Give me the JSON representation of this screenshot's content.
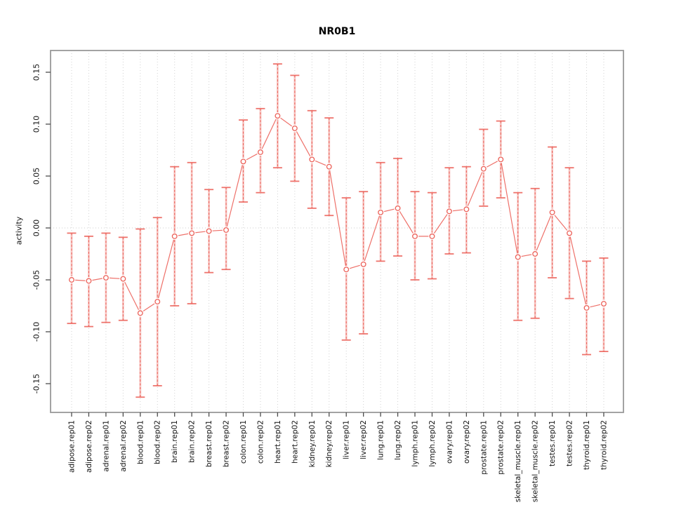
{
  "chart_data": {
    "type": "line",
    "title": "NR0B1",
    "ylabel": "activity",
    "xlabel": "",
    "grid": "vertical-dotted-per-category, dotted-zero-line",
    "legend": "none",
    "marker": "open-circle",
    "error_bars": true,
    "ylim": [
      -0.177,
      0.171
    ],
    "yticks": [
      {
        "value": 0.15,
        "label": "0.15"
      },
      {
        "value": 0.1,
        "label": "0.10"
      },
      {
        "value": 0.05,
        "label": "0.05"
      },
      {
        "value": 0.0,
        "label": "0.00"
      },
      {
        "value": -0.05,
        "label": "-0.05"
      },
      {
        "value": -0.1,
        "label": "-0.10"
      },
      {
        "value": -0.15,
        "label": "-0.15"
      }
    ],
    "categories": [
      "adipose.rep01",
      "adipose.rep02",
      "adrenal.rep01",
      "adrenal.rep02",
      "blood.rep01",
      "blood.rep02",
      "brain.rep01",
      "brain.rep02",
      "breast.rep01",
      "breast.rep02",
      "colon.rep01",
      "colon.rep02",
      "heart.rep01",
      "heart.rep02",
      "kidney.rep01",
      "kidney.rep02",
      "liver.rep01",
      "liver.rep02",
      "lung.rep01",
      "lung.rep02",
      "lymph.rep01",
      "lymph.rep02",
      "ovary.rep01",
      "ovary.rep02",
      "prostate.rep01",
      "prostate.rep02",
      "skeletal_muscle.rep01",
      "skeletal_muscle.rep02",
      "testes.rep01",
      "testes.rep02",
      "thyroid.rep01",
      "thyroid.rep02"
    ],
    "series": [
      {
        "name": "activity",
        "values": [
          -0.05,
          -0.051,
          -0.048,
          -0.049,
          -0.082,
          -0.071,
          -0.008,
          -0.005,
          -0.003,
          -0.002,
          0.064,
          0.073,
          0.108,
          0.096,
          0.066,
          0.059,
          -0.04,
          -0.035,
          0.015,
          0.019,
          -0.008,
          -0.008,
          0.016,
          0.018,
          0.057,
          0.066,
          -0.028,
          -0.025,
          0.015,
          -0.005,
          -0.077,
          -0.073
        ],
        "lower": [
          -0.092,
          -0.095,
          -0.091,
          -0.089,
          -0.163,
          -0.152,
          -0.075,
          -0.073,
          -0.043,
          -0.04,
          0.025,
          0.034,
          0.058,
          0.045,
          0.019,
          0.012,
          -0.108,
          -0.102,
          -0.032,
          -0.027,
          -0.05,
          -0.049,
          -0.025,
          -0.024,
          0.021,
          0.029,
          -0.089,
          -0.087,
          -0.048,
          -0.068,
          -0.122,
          -0.119
        ],
        "upper": [
          -0.005,
          -0.008,
          -0.005,
          -0.009,
          -0.001,
          0.01,
          0.059,
          0.063,
          0.037,
          0.039,
          0.104,
          0.115,
          0.158,
          0.147,
          0.113,
          0.106,
          0.029,
          0.035,
          0.063,
          0.067,
          0.035,
          0.034,
          0.058,
          0.059,
          0.095,
          0.103,
          0.034,
          0.038,
          0.078,
          0.058,
          -0.032,
          -0.029
        ]
      }
    ],
    "colors": {
      "series": "#ec6159",
      "series_light": "#f49c96",
      "grid": "#d2d2d2",
      "zero_line": "#cccccc",
      "box": "#999999",
      "tick": "#4d4d4d",
      "text": "#111111"
    }
  }
}
